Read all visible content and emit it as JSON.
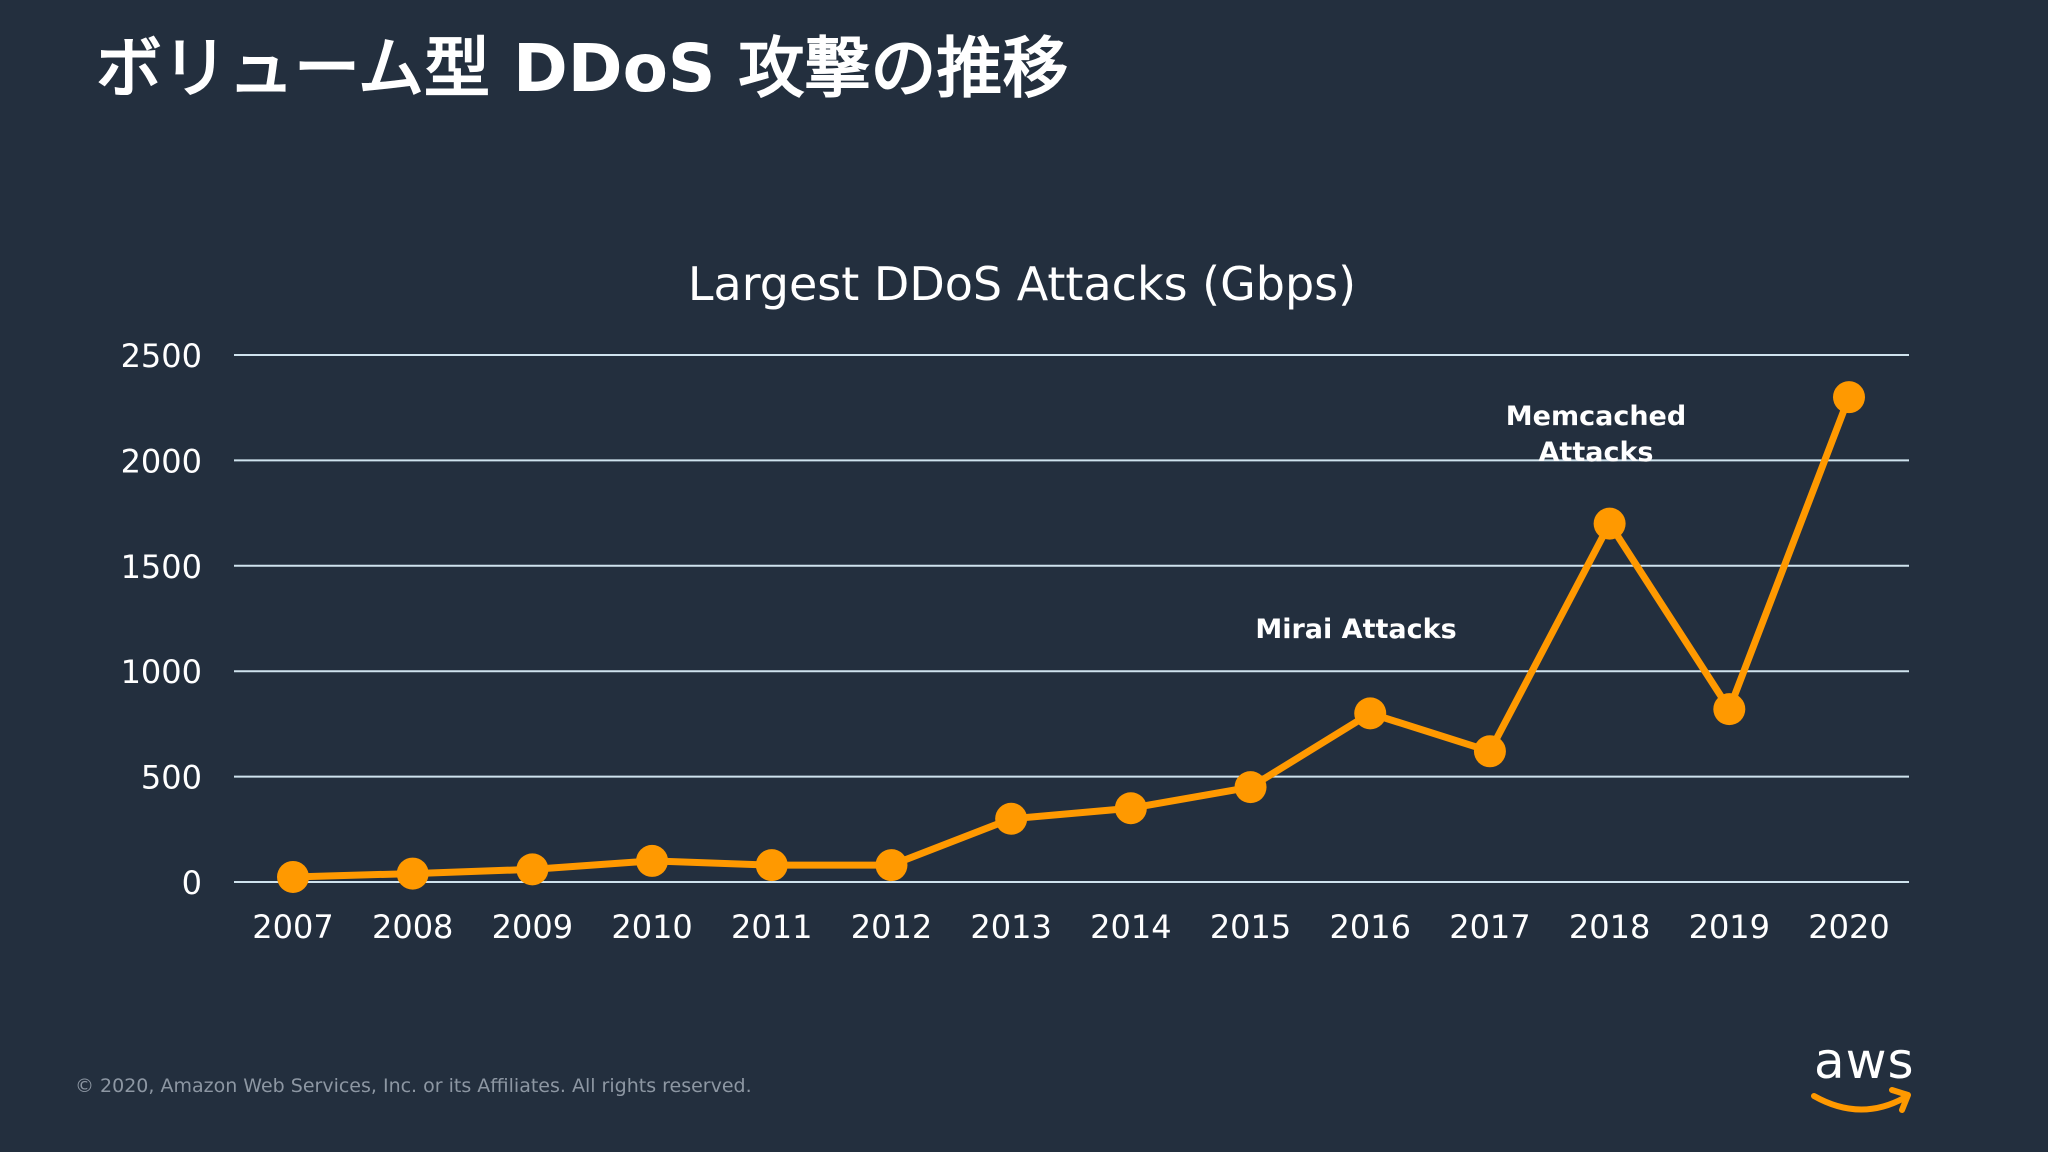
{
  "slide": {
    "title": "ボリューム型 DDoS 攻撃の推移",
    "copyright": "© 2020, Amazon Web Services, Inc. or its Affiliates. All rights reserved.",
    "logo_text": "aws"
  },
  "colors": {
    "background": "#232f3e",
    "series": "#ff9900",
    "grid": "#cfe3ee",
    "text": "#ffffff"
  },
  "chart_data": {
    "type": "line",
    "title": "Largest DDoS Attacks (Gbps)",
    "xlabel": "",
    "ylabel": "",
    "categories": [
      "2007",
      "2008",
      "2009",
      "2010",
      "2011",
      "2012",
      "2013",
      "2014",
      "2015",
      "2016",
      "2017",
      "2018",
      "2019",
      "2020"
    ],
    "series": [
      {
        "name": "Largest DDoS Attacks (Gbps)",
        "values": [
          24,
          40,
          60,
          100,
          80,
          80,
          300,
          350,
          450,
          800,
          620,
          1700,
          820,
          2300
        ]
      }
    ],
    "ylim": [
      0,
      2500
    ],
    "yticks": [
      0,
      500,
      1000,
      1500,
      2000,
      2500
    ],
    "grid": true,
    "legend": "none",
    "annotations": [
      {
        "category": "2016",
        "lines": [
          "Mirai Attacks"
        ]
      },
      {
        "category": "2018",
        "lines": [
          "Memcached",
          "Attacks"
        ]
      }
    ]
  }
}
